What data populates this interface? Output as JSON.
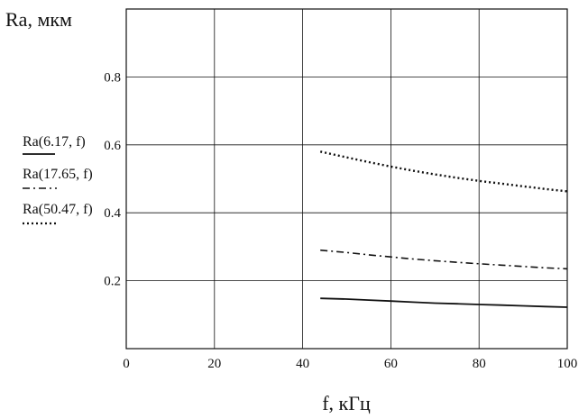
{
  "chart_data": {
    "type": "line",
    "title": "",
    "xlabel": "f, кГц",
    "ylabel": "Ra, мкм",
    "xlim": [
      0,
      100
    ],
    "ylim": [
      0,
      1.0
    ],
    "x_ticks": [
      0,
      20,
      40,
      60,
      80,
      100
    ],
    "y_ticks": [
      0.2,
      0.4,
      0.6,
      0.8
    ],
    "x_tick_labels": [
      "0",
      "20",
      "40",
      "60",
      "80",
      "100"
    ],
    "y_tick_labels": [
      "0.2",
      "0.4",
      "0.6",
      "0.8"
    ],
    "grid": true,
    "legend_position": "left",
    "series": [
      {
        "name": "Ra(6.17, f)",
        "style": "solid",
        "x": [
          44,
          50,
          55,
          60,
          65,
          70,
          75,
          80,
          85,
          90,
          95,
          100
        ],
        "y": [
          0.148,
          0.146,
          0.143,
          0.14,
          0.137,
          0.134,
          0.132,
          0.13,
          0.128,
          0.126,
          0.124,
          0.122
        ]
      },
      {
        "name": "Ra(17.65, f)",
        "style": "dashdot",
        "x": [
          44,
          50,
          55,
          60,
          65,
          70,
          75,
          80,
          85,
          90,
          95,
          100
        ],
        "y": [
          0.29,
          0.283,
          0.276,
          0.27,
          0.264,
          0.259,
          0.254,
          0.25,
          0.246,
          0.242,
          0.238,
          0.235
        ]
      },
      {
        "name": "Ra(50.47, f)",
        "style": "dotted",
        "x": [
          44,
          50,
          55,
          60,
          65,
          70,
          75,
          80,
          85,
          90,
          95,
          100
        ],
        "y": [
          0.58,
          0.563,
          0.549,
          0.536,
          0.524,
          0.513,
          0.503,
          0.494,
          0.486,
          0.478,
          0.47,
          0.463
        ]
      }
    ]
  }
}
